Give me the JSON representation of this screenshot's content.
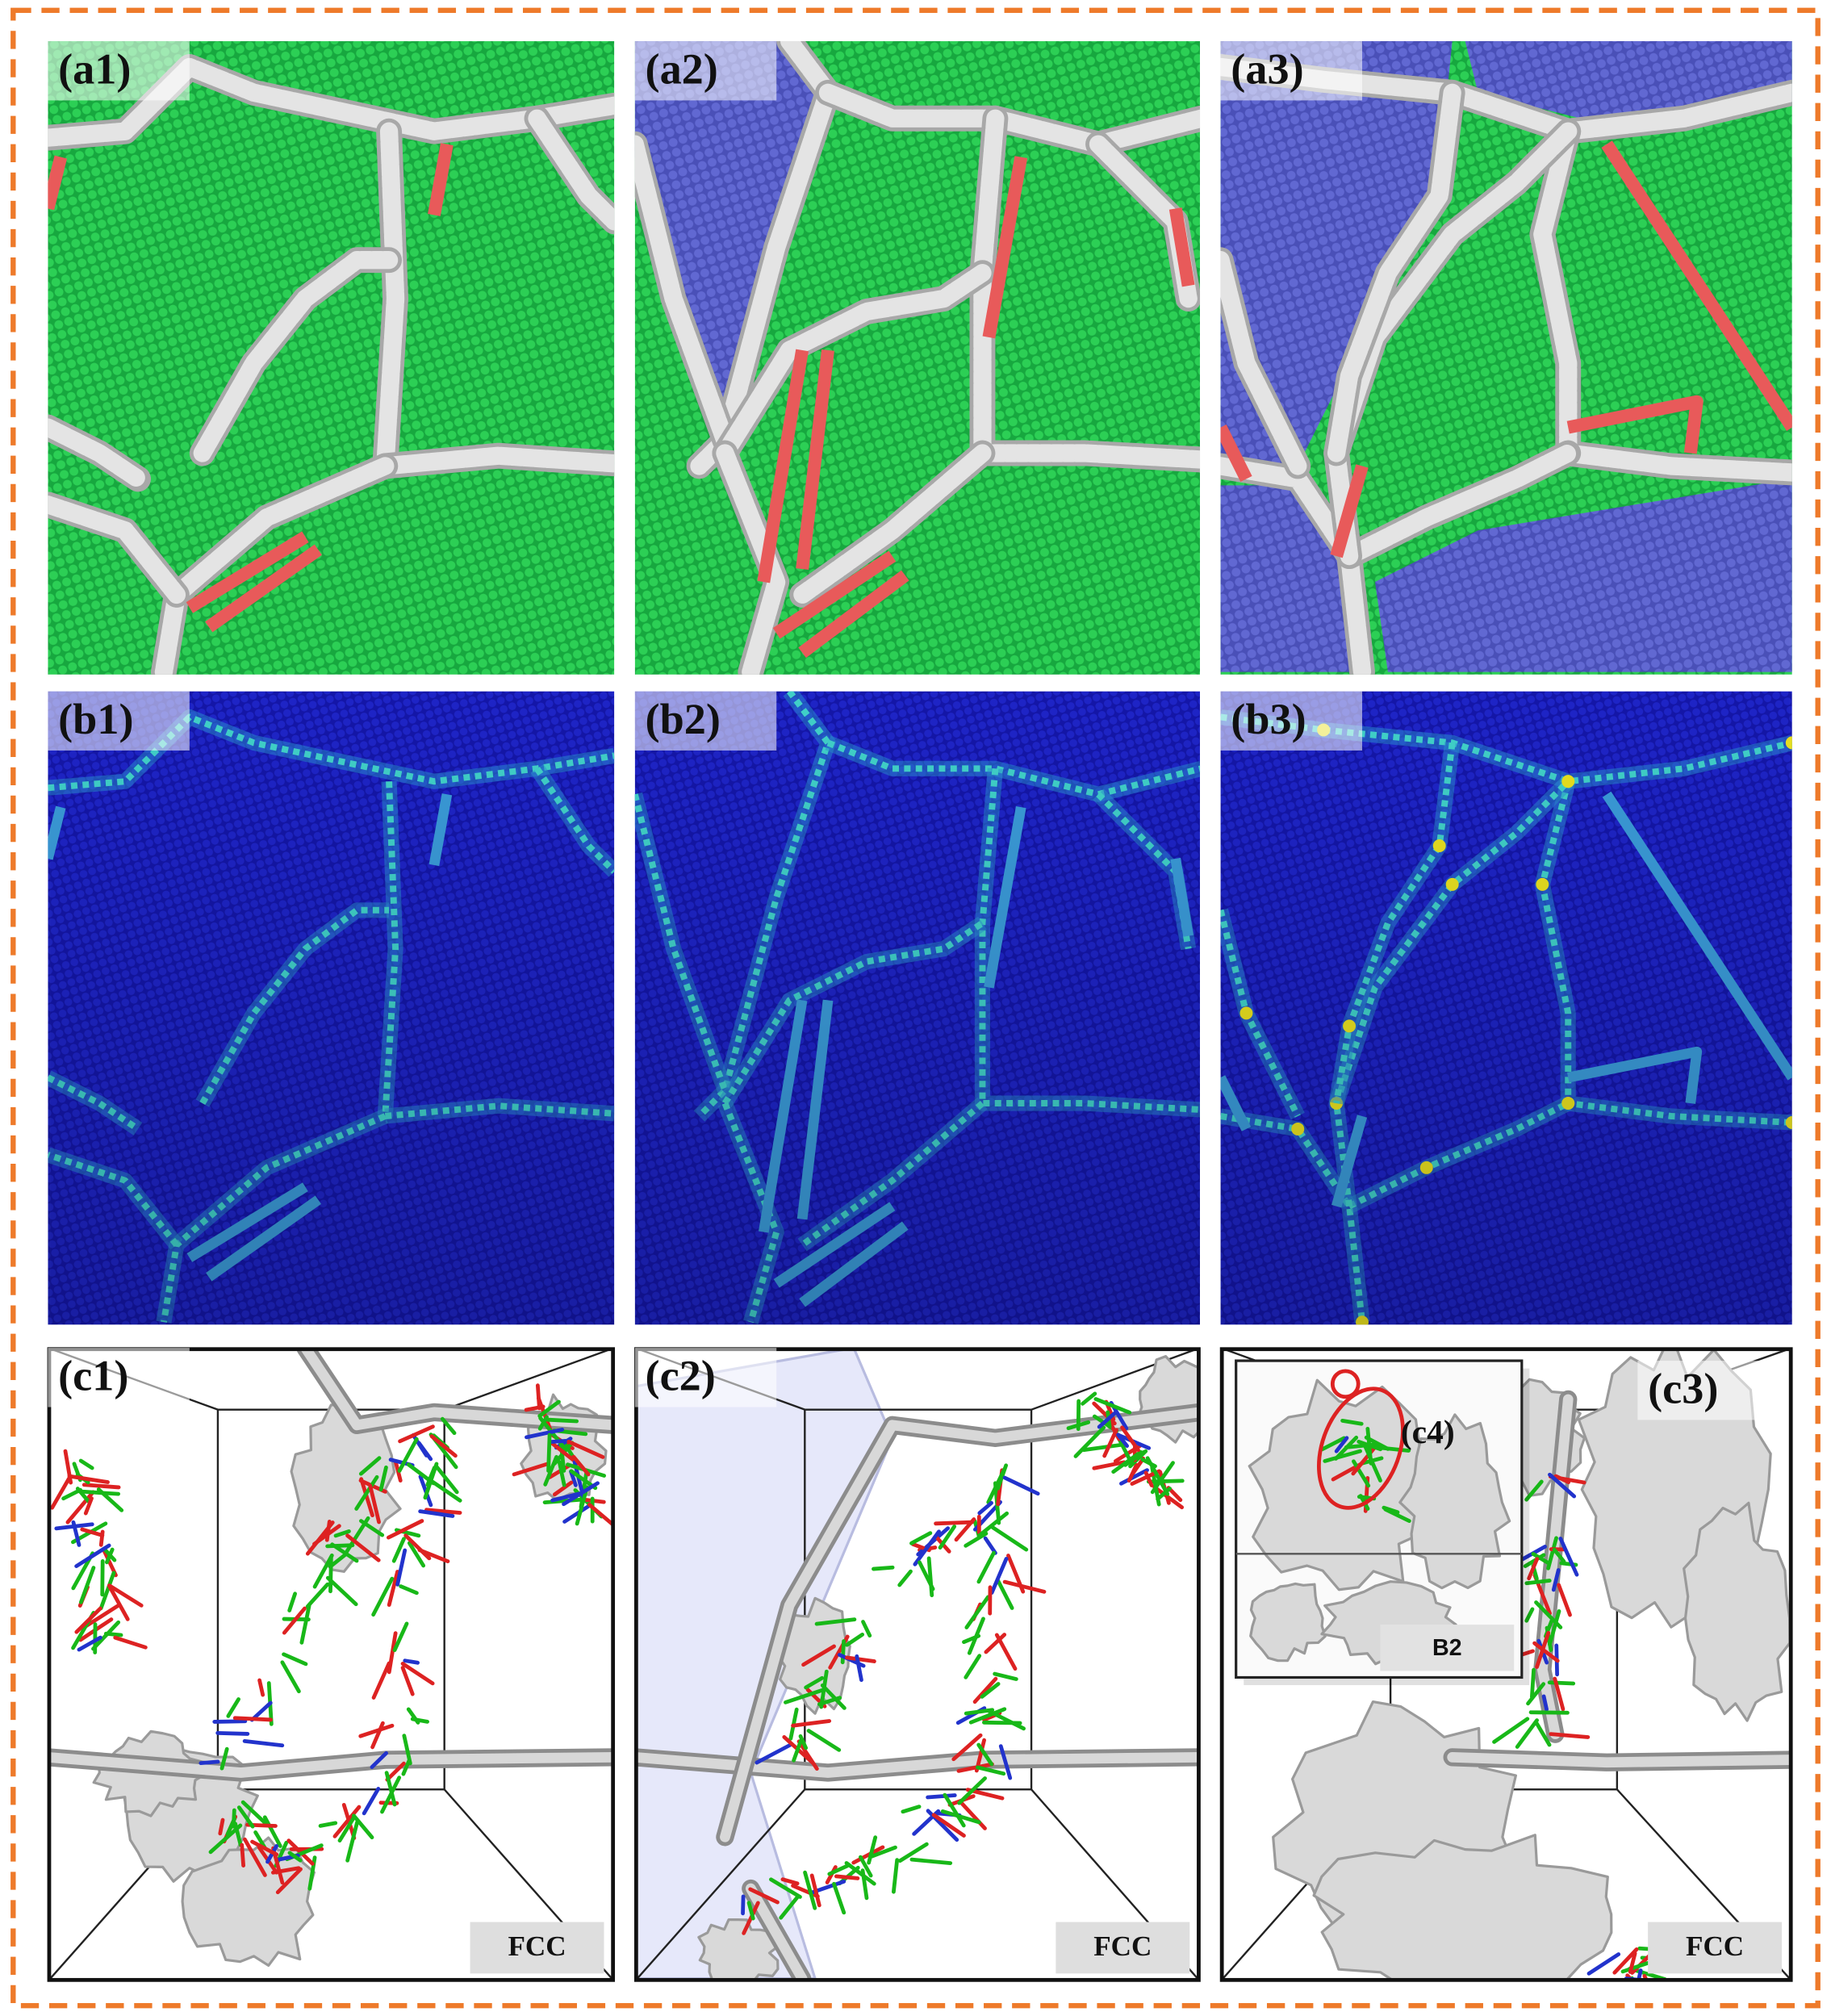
{
  "row_a": {
    "labels": [
      "(a1)",
      "(a2)",
      "(a3)"
    ]
  },
  "row_b": {
    "labels": [
      "(b1)",
      "(b2)",
      "(b3)"
    ]
  },
  "row_c": {
    "labels": [
      "(c1)",
      "(c2)",
      "(c3)"
    ],
    "structure_labels": [
      "FCC",
      "FCC",
      "FCC"
    ]
  },
  "inset": {
    "label": "(c4)",
    "structure_label": "B2"
  }
}
